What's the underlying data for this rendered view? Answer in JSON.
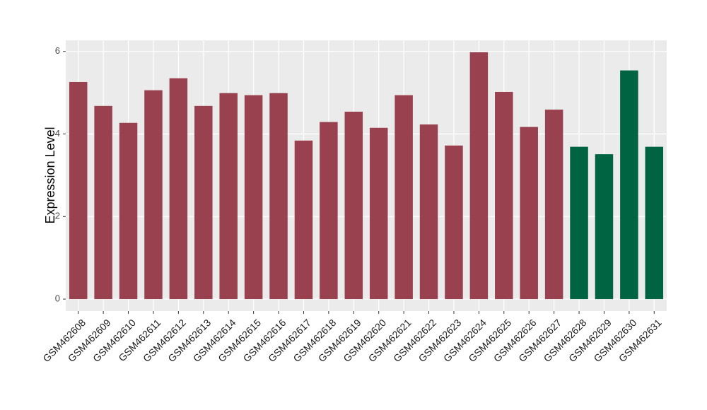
{
  "chart_data": {
    "type": "bar",
    "y_label": "Expression Level",
    "categories": [
      "GSM462608",
      "GSM462609",
      "GSM462610",
      "GSM462611",
      "GSM462612",
      "GSM462613",
      "GSM462614",
      "GSM462615",
      "GSM462616",
      "GSM462617",
      "GSM462618",
      "GSM462619",
      "GSM462620",
      "GSM462621",
      "GSM462622",
      "GSM462623",
      "GSM462624",
      "GSM462625",
      "GSM462626",
      "GSM462627",
      "GSM462628",
      "GSM462629",
      "GSM462630",
      "GSM462631"
    ],
    "values": [
      5.26,
      4.68,
      4.27,
      5.06,
      5.35,
      4.68,
      4.99,
      4.94,
      4.99,
      3.84,
      4.29,
      4.54,
      4.15,
      4.94,
      4.23,
      3.72,
      5.98,
      5.02,
      4.17,
      4.59,
      3.69,
      3.51,
      5.54,
      3.69
    ],
    "colors": [
      "#99414f",
      "#99414f",
      "#99414f",
      "#99414f",
      "#99414f",
      "#99414f",
      "#99414f",
      "#99414f",
      "#99414f",
      "#99414f",
      "#99414f",
      "#99414f",
      "#99414f",
      "#99414f",
      "#99414f",
      "#99414f",
      "#99414f",
      "#99414f",
      "#99414f",
      "#99414f",
      "#006341",
      "#006341",
      "#006341",
      "#006341"
    ],
    "ylim": [
      -0.29,
      6.27
    ],
    "yticks": [
      0,
      2,
      4,
      6
    ],
    "grid": true
  }
}
